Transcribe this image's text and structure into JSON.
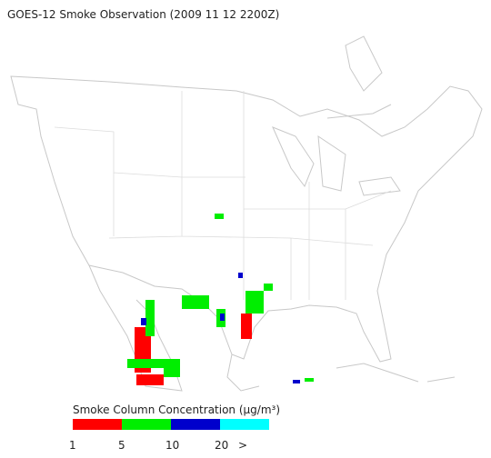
{
  "header": {
    "title": "GOES-12 Smoke Observation (2009 11 12  2200Z)"
  },
  "legend": {
    "title": "Smoke Column Concentration (μg/m³)",
    "colors": [
      "#ff0000",
      "#00ee00",
      "#0000cc",
      "#00ffff"
    ],
    "ticks": [
      "1",
      "5",
      "10",
      "20",
      ">"
    ]
  }
}
